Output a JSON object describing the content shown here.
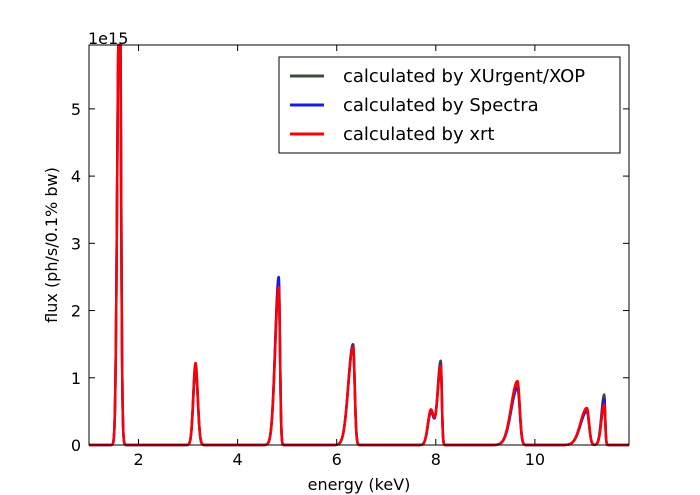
{
  "chart_data": {
    "type": "line",
    "xlabel": "energy (keV)",
    "ylabel": "flux (ph/s/0.1% bw)",
    "offset_text": "1e15",
    "xlim": [
      1.0,
      11.9
    ],
    "ylim": [
      0,
      5.95
    ],
    "xticks": [
      2,
      4,
      6,
      8,
      10
    ],
    "yticks": [
      0,
      1,
      2,
      3,
      4,
      5
    ],
    "grid": false,
    "legend_position": "top-right",
    "series": [
      {
        "name": "calculated by XUrgent/XOP",
        "color": "#3d4a3d",
        "peaks": [
          {
            "center": 1.6,
            "height": 5.8,
            "width": 0.035,
            "shape": "spike"
          },
          {
            "center": 1.63,
            "height": 2.9,
            "width": 0.02,
            "shape": "spike"
          },
          {
            "center": 3.15,
            "height": 1.15,
            "width": 0.045,
            "shape": "gauss"
          },
          {
            "center": 4.83,
            "height": 2.42,
            "width": 0.045,
            "shape": "edge"
          },
          {
            "center": 6.33,
            "height": 1.5,
            "width": 0.06,
            "shape": "edge"
          },
          {
            "center": 7.9,
            "height": 0.5,
            "width": 0.06,
            "shape": "gauss"
          },
          {
            "center": 8.1,
            "height": 1.25,
            "width": 0.04,
            "shape": "edge"
          },
          {
            "center": 9.65,
            "height": 0.92,
            "width": 0.08,
            "shape": "edge"
          },
          {
            "center": 11.05,
            "height": 0.52,
            "width": 0.08,
            "shape": "edge"
          },
          {
            "center": 11.4,
            "height": 0.75,
            "width": 0.035,
            "shape": "edge"
          }
        ]
      },
      {
        "name": "calculated by Spectra",
        "color": "#1a1ae6",
        "peaks": [
          {
            "center": 1.6,
            "height": 5.9,
            "width": 0.035,
            "shape": "spike"
          },
          {
            "center": 1.63,
            "height": 2.6,
            "width": 0.02,
            "shape": "spike"
          },
          {
            "center": 3.15,
            "height": 1.18,
            "width": 0.045,
            "shape": "gauss"
          },
          {
            "center": 4.83,
            "height": 2.5,
            "width": 0.045,
            "shape": "edge"
          },
          {
            "center": 6.33,
            "height": 1.48,
            "width": 0.06,
            "shape": "edge"
          },
          {
            "center": 7.9,
            "height": 0.48,
            "width": 0.06,
            "shape": "gauss"
          },
          {
            "center": 8.1,
            "height": 1.2,
            "width": 0.04,
            "shape": "edge"
          },
          {
            "center": 9.65,
            "height": 0.85,
            "width": 0.08,
            "shape": "edge"
          },
          {
            "center": 11.05,
            "height": 0.5,
            "width": 0.08,
            "shape": "edge"
          },
          {
            "center": 11.4,
            "height": 0.68,
            "width": 0.035,
            "shape": "edge"
          }
        ]
      },
      {
        "name": "calculated by xrt",
        "color": "#ff0000",
        "peaks": [
          {
            "center": 1.6,
            "height": 5.75,
            "width": 0.035,
            "shape": "spike"
          },
          {
            "center": 1.63,
            "height": 2.3,
            "width": 0.02,
            "shape": "spike"
          },
          {
            "center": 3.15,
            "height": 1.22,
            "width": 0.045,
            "shape": "gauss"
          },
          {
            "center": 4.83,
            "height": 2.35,
            "width": 0.045,
            "shape": "edge"
          },
          {
            "center": 6.33,
            "height": 1.46,
            "width": 0.06,
            "shape": "edge"
          },
          {
            "center": 7.9,
            "height": 0.52,
            "width": 0.06,
            "shape": "gauss"
          },
          {
            "center": 8.1,
            "height": 1.18,
            "width": 0.04,
            "shape": "edge"
          },
          {
            "center": 9.65,
            "height": 0.95,
            "width": 0.08,
            "shape": "edge"
          },
          {
            "center": 11.05,
            "height": 0.55,
            "width": 0.08,
            "shape": "edge"
          },
          {
            "center": 11.4,
            "height": 0.6,
            "width": 0.035,
            "shape": "edge"
          }
        ]
      }
    ]
  }
}
